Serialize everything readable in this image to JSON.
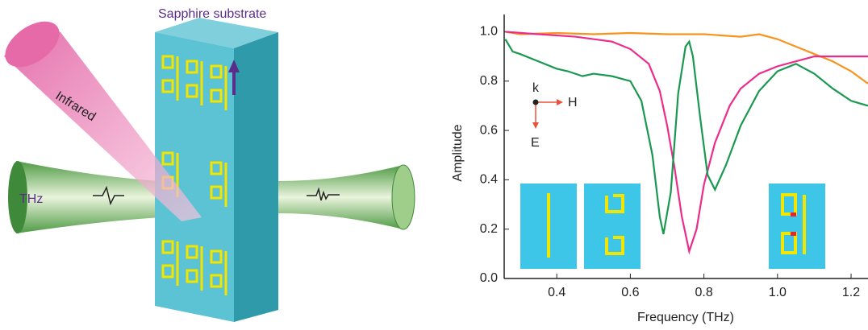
{
  "diagram": {
    "labels": [
      "Sapphire substrate",
      "Infrared",
      "THz"
    ]
  },
  "chart_data": {
    "type": "line",
    "xlabel": "Frequency (THz)",
    "ylabel": "Amplitude",
    "annotations": [
      "k",
      "H",
      "E"
    ],
    "xlim": [
      0.257,
      1.246
    ],
    "ylim": [
      0,
      1.07
    ],
    "xticks": [
      0.4,
      0.6,
      0.8,
      {
        "value": 1,
        "label": "1.0"
      },
      1.2
    ],
    "yticks": [
      {
        "value": 0,
        "label": "0.0"
      },
      0.2,
      0.4,
      0.6,
      0.8,
      {
        "value": 1,
        "label": "1.0"
      }
    ],
    "series": [
      {
        "color": "#f7931e",
        "x": [
          0.26,
          0.3,
          0.4,
          0.5,
          0.6,
          0.7,
          0.8,
          0.9,
          0.95,
          1.0,
          1.05,
          1.1,
          1.15,
          1.2,
          1.246
        ],
        "values": [
          1.0,
          0.99,
          0.995,
          0.99,
          0.995,
          0.99,
          0.99,
          0.98,
          0.99,
          0.97,
          0.94,
          0.91,
          0.88,
          0.84,
          0.79
        ]
      },
      {
        "color": "#ec2c8c",
        "x": [
          0.26,
          0.35,
          0.45,
          0.55,
          0.6,
          0.65,
          0.68,
          0.7,
          0.72,
          0.74,
          0.76,
          0.78,
          0.8,
          0.83,
          0.87,
          0.9,
          0.95,
          1.0,
          1.05,
          1.1,
          1.15,
          1.246
        ],
        "values": [
          1.0,
          0.99,
          0.98,
          0.96,
          0.93,
          0.87,
          0.76,
          0.62,
          0.45,
          0.25,
          0.11,
          0.2,
          0.38,
          0.55,
          0.7,
          0.77,
          0.83,
          0.86,
          0.88,
          0.9,
          0.9,
          0.9
        ]
      },
      {
        "color": "#1a9850",
        "x": [
          0.26,
          0.28,
          0.3,
          0.35,
          0.4,
          0.43,
          0.47,
          0.5,
          0.55,
          0.6,
          0.63,
          0.66,
          0.68,
          0.69,
          0.71,
          0.73,
          0.75,
          0.76,
          0.77,
          0.79,
          0.81,
          0.83,
          0.86,
          0.9,
          0.95,
          1.0,
          1.05,
          1.1,
          1.15,
          1.2,
          1.246
        ],
        "values": [
          0.97,
          0.92,
          0.91,
          0.88,
          0.85,
          0.84,
          0.82,
          0.83,
          0.82,
          0.8,
          0.72,
          0.5,
          0.25,
          0.18,
          0.35,
          0.75,
          0.94,
          0.96,
          0.9,
          0.65,
          0.42,
          0.36,
          0.46,
          0.62,
          0.76,
          0.84,
          0.87,
          0.83,
          0.77,
          0.72,
          0.7
        ]
      }
    ]
  }
}
